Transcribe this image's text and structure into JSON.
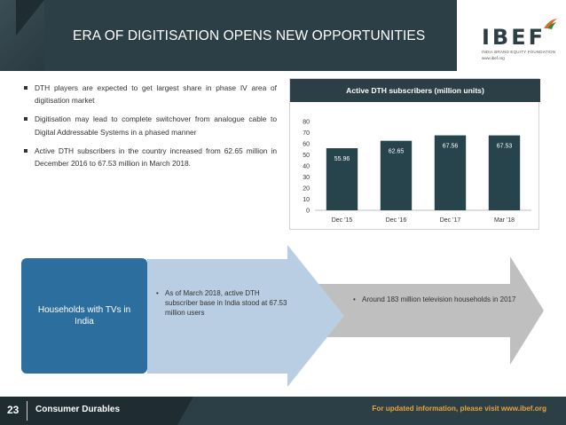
{
  "header": {
    "title": "ERA OF DIGITISATION OPENS NEW OPPORTUNITIES"
  },
  "logo": {
    "brand": "IBEF",
    "tagline": "INDIA BRAND EQUITY FOUNDATION",
    "url": "www.ibef.org"
  },
  "bullets": [
    "DTH players are expected to get largest share in phase IV area of digitisation market",
    "Digitisation may lead to complete switchover from analogue cable to Digital Addressable Systems in a phased manner",
    "Active DTH subscribers in the country increased from 62.65 million in December 2016 to 67.53 million in March 2018."
  ],
  "chart_data": {
    "type": "bar",
    "title": "Active DTH subscribers (million units)",
    "categories": [
      "Dec '15",
      "Dec '16",
      "Dec '17",
      "Mar '18"
    ],
    "values": [
      55.96,
      62.65,
      67.56,
      67.53
    ],
    "value_labels": [
      "55.96",
      "62.65",
      "67.56",
      "67.53"
    ],
    "yticks": [
      "0",
      "10",
      "20",
      "30",
      "40",
      "50",
      "60",
      "70",
      "80"
    ],
    "ylim": [
      0,
      80
    ],
    "xlabel": "",
    "ylabel": "",
    "bar_color": "#27434c",
    "grid": false
  },
  "process": {
    "households_label": "Households with TVs in India",
    "step1": "As of March 2018, active DTH subscriber base in India stood at 67.53 million users",
    "step2": "Around 183 million television households in 2017"
  },
  "footer": {
    "page_number": "23",
    "section": "Consumer Durables",
    "note": "For updated information, please visit www.ibef.org"
  },
  "colors": {
    "header": "#2d3f46",
    "box_blue": "#2c6e9e",
    "arrow_light_blue": "#b9cde3",
    "arrow_grey": "#bfbfbf",
    "footer_note": "#e8a43a"
  }
}
